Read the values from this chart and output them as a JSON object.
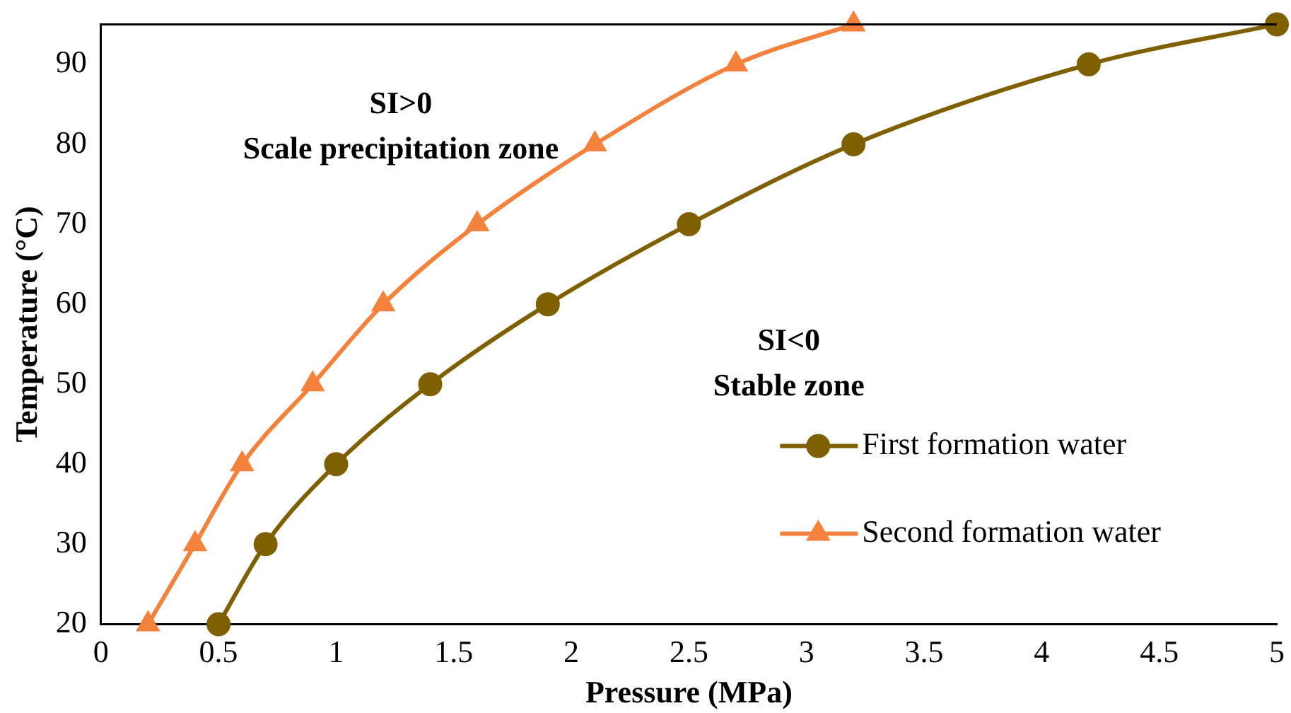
{
  "chart_data": {
    "type": "line",
    "xlabel": "Pressure (MPa)",
    "ylabel": "Temperature (°C)",
    "xlim": [
      0,
      5
    ],
    "xticks": [
      0,
      0.5,
      1,
      1.5,
      2,
      2.5,
      3,
      3.5,
      4,
      4.5,
      5
    ],
    "ylim": [
      20,
      95
    ],
    "yticks": [
      20,
      30,
      40,
      50,
      60,
      70,
      80,
      90
    ],
    "grid": false,
    "legend": "bottom right",
    "line_style": "solid",
    "annotations": [
      "SI>0",
      "Scale precipitation zone",
      "SI<0",
      "Stable zone"
    ],
    "series": [
      {
        "name": "First formation water",
        "color": "#7f6000",
        "marker": "circle",
        "x": [
          0.5,
          0.7,
          1,
          1.4,
          1.9,
          2.5,
          3.2,
          4.2,
          5
        ],
        "values": [
          20,
          30,
          40,
          50,
          60,
          70,
          80,
          90,
          95
        ]
      },
      {
        "name": "Second formation water",
        "color": "#f4823c",
        "marker": "triangle",
        "x": [
          0.2,
          0.4,
          0.6,
          0.9,
          1.2,
          1.6,
          2.1,
          2.7,
          3.2
        ],
        "values": [
          20,
          30,
          40,
          50,
          60,
          70,
          80,
          90,
          95
        ]
      }
    ]
  }
}
